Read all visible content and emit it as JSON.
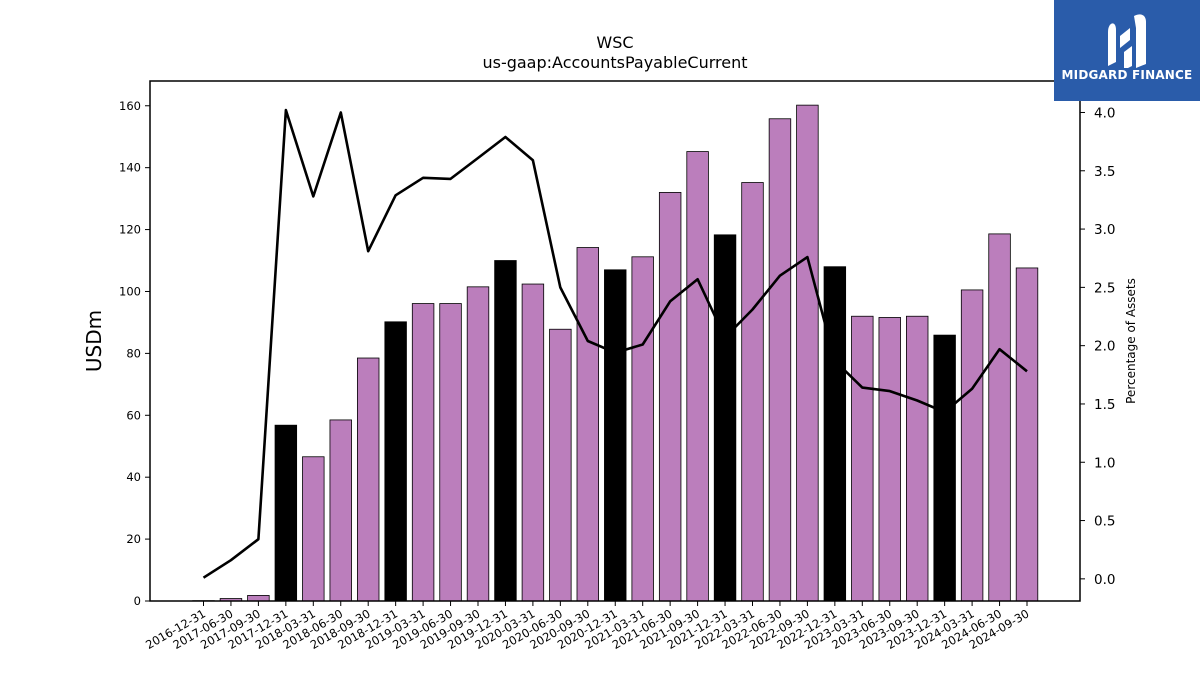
{
  "chart_data": {
    "type": "bar",
    "title": "WSC",
    "subtitle": "us-gaap:AccountsPayableCurrent",
    "ylabel": "USDm",
    "y2label": "Percentage of Assets",
    "ylim": [
      0,
      168
    ],
    "y2lim": [
      -0.19,
      4.27
    ],
    "yticks": [
      0,
      20,
      40,
      60,
      80,
      100,
      120,
      140,
      160
    ],
    "y2ticks": [
      "0.0",
      "0.5",
      "1.0",
      "1.5",
      "2.0",
      "2.5",
      "3.0",
      "3.5",
      "4.0"
    ],
    "categories": [
      "2016-12-31",
      "2017-06-30",
      "2017-09-30",
      "2017-12-31",
      "2018-03-31",
      "2018-06-30",
      "2018-09-30",
      "2018-12-31",
      "2019-03-31",
      "2019-06-30",
      "2019-09-30",
      "2019-12-31",
      "2020-03-31",
      "2020-06-30",
      "2020-09-30",
      "2020-12-31",
      "2021-03-31",
      "2021-06-30",
      "2021-09-30",
      "2021-12-31",
      "2022-03-31",
      "2022-06-30",
      "2022-09-30",
      "2022-12-31",
      "2023-03-31",
      "2023-06-30",
      "2023-09-30",
      "2023-12-31",
      "2024-03-31",
      "2024-06-30",
      "2024-09-30"
    ],
    "series": [
      {
        "values": [
          0.1,
          0.8,
          1.8,
          56.8,
          46.6,
          58.5,
          78.5,
          90.2,
          96.1,
          96.1,
          101.5,
          110.0,
          102.4,
          87.8,
          114.2,
          107.0,
          111.2,
          132.0,
          145.2,
          118.3,
          135.2,
          155.8,
          160.2,
          108.0,
          92.0,
          91.6,
          92.0,
          85.9,
          100.5,
          118.6,
          107.6
        ]
      },
      {
        "values": [
          0.01,
          0.16,
          0.34,
          4.02,
          3.28,
          4.0,
          2.81,
          3.29,
          3.44,
          3.43,
          3.61,
          3.79,
          3.59,
          2.5,
          2.04,
          1.94,
          2.01,
          2.38,
          2.57,
          2.07,
          2.31,
          2.6,
          2.76,
          1.87,
          1.64,
          1.61,
          1.53,
          1.43,
          1.63,
          1.97,
          1.78
        ]
      }
    ],
    "year_end_highlight": [
      false,
      false,
      false,
      true,
      false,
      false,
      false,
      true,
      false,
      false,
      false,
      true,
      false,
      false,
      false,
      true,
      false,
      false,
      false,
      true,
      false,
      false,
      false,
      true,
      false,
      false,
      false,
      true,
      false,
      false,
      false
    ],
    "colors": {
      "bar": "#bb7ebc",
      "bar_year_end": "#000000",
      "line": "#000000"
    },
    "grid": false
  },
  "logo": {
    "text": "MIDGARD FINANCE",
    "bg": "#2a5caa"
  }
}
